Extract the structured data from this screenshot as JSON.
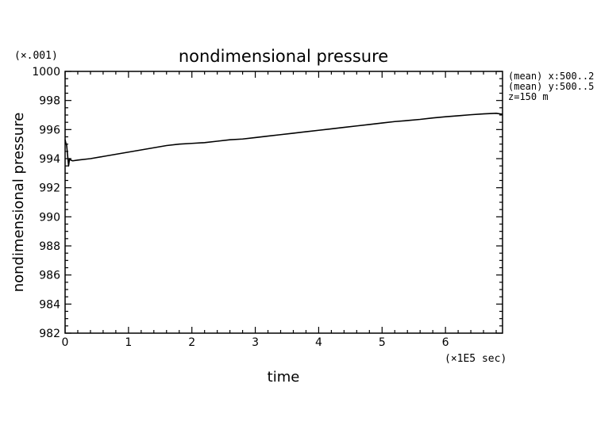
{
  "chart_data": {
    "type": "line",
    "title": "nondimensional pressure",
    "xlabel": "time",
    "ylabel": "nondimensional pressure",
    "x_multiplier": "(×1E5 sec)",
    "y_multiplier": "(×.001)",
    "xlim": [
      0,
      6.9
    ],
    "ylim": [
      982,
      1000
    ],
    "x_ticks": [
      "0",
      "1",
      "2",
      "3",
      "4",
      "5",
      "6"
    ],
    "y_ticks": [
      "982",
      "984",
      "986",
      "988",
      "990",
      "992",
      "994",
      "996",
      "998",
      "1000"
    ],
    "grid": false,
    "annotations": [
      "(mean) x:500..2",
      "(mean) y:500..5",
      "z=150 m"
    ],
    "series": [
      {
        "x": [
          0,
          0.01,
          0.025,
          0.04,
          0.055,
          0.07,
          0.09,
          0.12,
          0.2,
          0.4,
          0.6,
          0.8,
          1.0,
          1.2,
          1.4,
          1.6,
          1.8,
          2.0,
          2.2,
          2.4,
          2.6,
          2.8,
          3.0,
          3.2,
          3.4,
          3.6,
          3.8,
          4.0,
          4.2,
          4.4,
          4.6,
          4.8,
          5.0,
          5.2,
          5.4,
          5.6,
          5.8,
          6.0,
          6.2,
          6.4,
          6.6,
          6.8,
          6.9
        ],
        "y": [
          995.3,
          995.1,
          994.9,
          994.2,
          993.5,
          994.0,
          993.9,
          993.85,
          993.9,
          994.0,
          994.15,
          994.3,
          994.45,
          994.6,
          994.75,
          994.9,
          995.0,
          995.05,
          995.1,
          995.2,
          995.3,
          995.35,
          995.45,
          995.55,
          995.65,
          995.75,
          995.85,
          995.95,
          996.05,
          996.15,
          996.25,
          996.35,
          996.45,
          996.55,
          996.62,
          996.7,
          996.8,
          996.88,
          996.95,
          997.02,
          997.08,
          997.12,
          997.05
        ]
      }
    ]
  }
}
